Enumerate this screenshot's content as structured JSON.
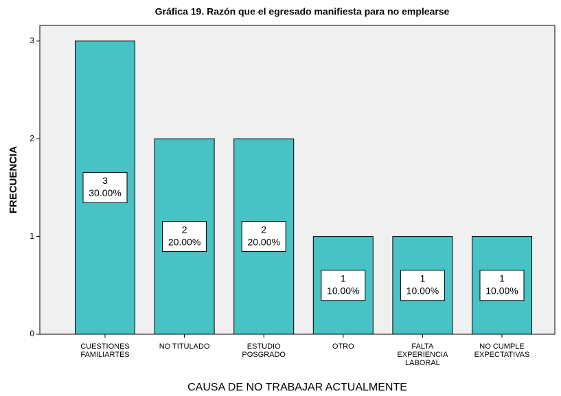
{
  "chart_data": {
    "type": "bar",
    "title": "Gráfica 19.  Razón que el egresado manifiesta para no emplearse",
    "x_label": "CAUSA DE NO TRABAJAR ACTUALMENTE",
    "y_label": "FRECUENCIA",
    "categories": [
      [
        "CUESTIONES",
        "FAMILIARTES"
      ],
      [
        "NO TITULADO"
      ],
      [
        "ESTUDIO",
        "POSGRADO"
      ],
      [
        "OTRO"
      ],
      [
        "FALTA",
        "EXPERIENCIA",
        "LABORAL"
      ],
      [
        "NO CUMPLE",
        "EXPECTATIVAS"
      ]
    ],
    "values": [
      3,
      2,
      2,
      1,
      1,
      1
    ],
    "value_labels": [
      "3",
      "2",
      "2",
      "1",
      "1",
      "1"
    ],
    "percents": [
      30,
      20,
      20,
      10,
      10,
      10
    ],
    "percent_labels": [
      "30.00%",
      "20.00%",
      "20.00%",
      "10.00%",
      "10.00%",
      "10.00%"
    ],
    "color": "#48c2c5",
    "ylim": [
      0,
      3.16
    ],
    "yticks": [
      0,
      1,
      2,
      3
    ],
    "grid": false
  }
}
